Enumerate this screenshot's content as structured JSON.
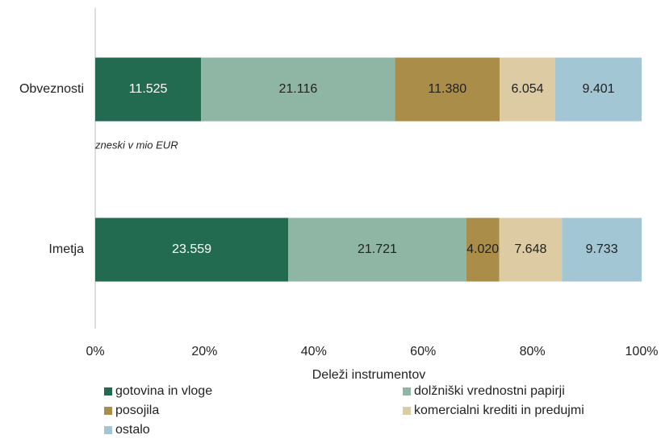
{
  "chart_data": {
    "type": "stacked_bar_100",
    "categories": [
      "Obveznosti",
      "Imetja"
    ],
    "series": [
      {
        "name": "gotovina in vloge",
        "color": "#236b50",
        "values": [
          11525,
          23559
        ],
        "value_labels": [
          "11.525",
          "23.559"
        ]
      },
      {
        "name": "dolžniški vrednostni papirji",
        "color": "#8fb5a5",
        "values": [
          21116,
          21721
        ],
        "value_labels": [
          "21.116",
          "21.721"
        ]
      },
      {
        "name": "posojila",
        "color": "#ab8d4a",
        "values": [
          11380,
          4020
        ],
        "value_labels": [
          "11.380",
          "4.020"
        ]
      },
      {
        "name": "komercialni krediti in predujmi",
        "color": "#dccba3",
        "values": [
          6054,
          7648
        ],
        "value_labels": [
          "6.054",
          "7.648"
        ]
      },
      {
        "name": "ostalo",
        "color": "#a3c6d4",
        "values": [
          9401,
          9733
        ],
        "value_labels": [
          "9.401",
          "9.733"
        ]
      }
    ],
    "xlabel": "Deleži instrumentov",
    "annotation": "zneski v mio EUR",
    "xlim": [
      0,
      100
    ],
    "xticks": [
      {
        "value": 0,
        "label": "0%"
      },
      {
        "value": 20,
        "label": "20%"
      },
      {
        "value": 40,
        "label": "40%"
      },
      {
        "value": 60,
        "label": "60%"
      },
      {
        "value": 80,
        "label": "80%"
      },
      {
        "value": 100,
        "label": "100%"
      }
    ],
    "grid": false
  }
}
